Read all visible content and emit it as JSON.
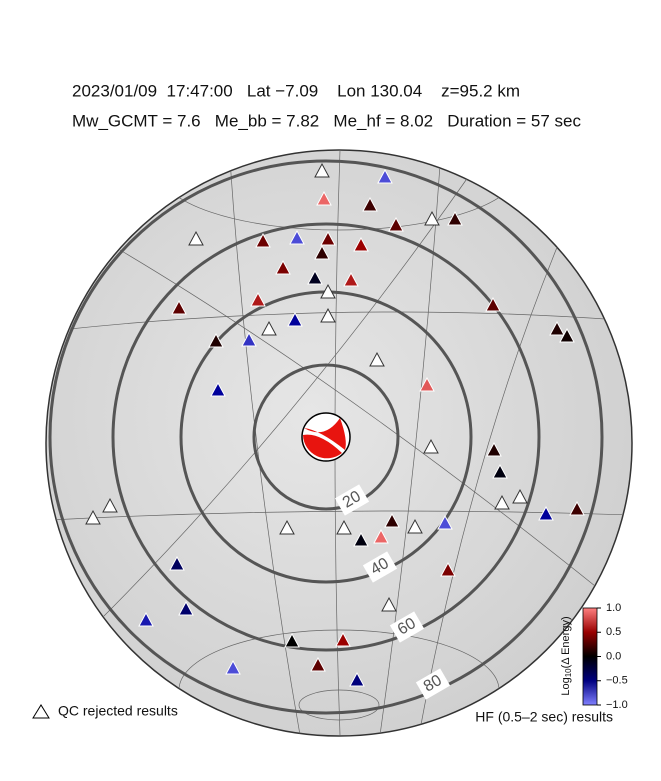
{
  "header": {
    "line1": "2023/01/09  17:47:00   Lat −7.09    Lon 130.04    z=95.2 km",
    "line2": "Mw_GCMT = 7.6   Me_bb = 7.82   Me_hf = 8.02   Duration = 57 sec"
  },
  "map": {
    "distance_rings": [
      20,
      40,
      60,
      80
    ],
    "stations": {
      "values": [
        null,
        -0.8,
        0.9,
        0.2,
        0.3,
        null,
        0.15,
        null,
        0.35,
        -0.8,
        0.35,
        0.5,
        0.4,
        -0.1,
        0.15,
        0.6,
        null,
        0.3,
        0.6,
        0.3,
        0.1,
        0.05,
        -0.7,
        null,
        -0.5,
        null,
        0.1,
        null,
        0.85,
        -0.5,
        null,
        0.1,
        -0.05,
        null,
        null,
        -0.5,
        0.2,
        null,
        null,
        null,
        null,
        -0.05,
        0.15,
        0.9,
        null,
        -0.8,
        0.4,
        -0.3,
        -0.35,
        null,
        -0.6,
        0,
        0.5,
        0.3,
        -0.4,
        -0.8
      ]
    }
  },
  "colorbar": {
    "label_main": "Log",
    "label_sub": "10",
    "label_rest": "(Δ Energy)",
    "range": [
      -1,
      1
    ],
    "ticks": [
      {
        "value": 1,
        "label": "1.0"
      },
      {
        "value": 0.5,
        "label": "0.5"
      },
      {
        "value": 0,
        "label": "0.0"
      },
      {
        "value": -0.5,
        "label": "−0.5"
      },
      {
        "value": -1,
        "label": "−1.0"
      }
    ]
  },
  "legend": {
    "rejected": "QC rejected results",
    "results": "HF (0.5–2 sec) results"
  }
}
